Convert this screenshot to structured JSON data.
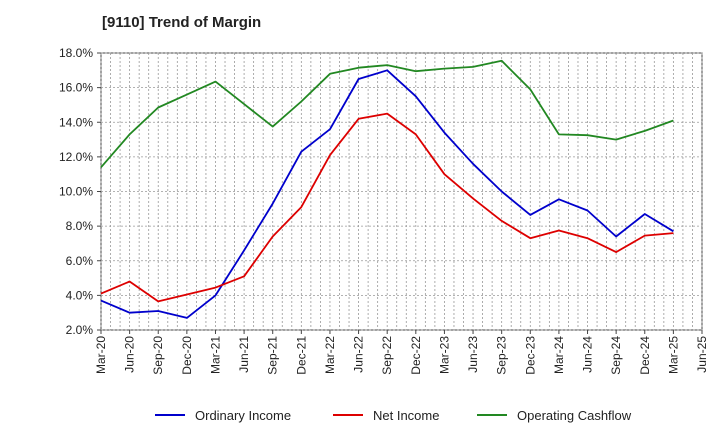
{
  "chart_data": {
    "type": "line",
    "title": "[9110]  Trend of Margin",
    "xlabel": "",
    "ylabel": "",
    "ylim": [
      2.0,
      18.0
    ],
    "y_ticks": [
      "2.0%",
      "4.0%",
      "6.0%",
      "8.0%",
      "10.0%",
      "12.0%",
      "14.0%",
      "16.0%",
      "18.0%"
    ],
    "y_tick_values": [
      2,
      4,
      6,
      8,
      10,
      12,
      14,
      16,
      18
    ],
    "x_tick_labels": [
      "Mar-20",
      "Jun-20",
      "Sep-20",
      "Dec-20",
      "Mar-21",
      "Jun-21",
      "Sep-21",
      "Dec-21",
      "Mar-22",
      "Jun-22",
      "Sep-22",
      "Dec-22",
      "Mar-23",
      "Jun-23",
      "Sep-23",
      "Dec-23",
      "Mar-24",
      "Jun-24",
      "Sep-24",
      "Dec-24",
      "Mar-25",
      "Jun-25"
    ],
    "categories": [
      "Mar-20",
      "Jun-20",
      "Sep-20",
      "Dec-20",
      "Mar-21",
      "Jun-21",
      "Sep-21",
      "Dec-21",
      "Mar-22",
      "Jun-22",
      "Sep-22",
      "Dec-22",
      "Mar-23",
      "Jun-23",
      "Sep-23",
      "Dec-23",
      "Mar-24",
      "Jun-24",
      "Sep-24",
      "Dec-24",
      "Mar-25"
    ],
    "grid": true,
    "legend_position": "bottom",
    "series": [
      {
        "name": "Ordinary Income",
        "color": "#0000cc",
        "values": [
          3.7,
          3.0,
          3.1,
          2.7,
          4.0,
          6.6,
          9.3,
          12.3,
          13.6,
          16.5,
          17.0,
          15.5,
          13.4,
          11.6,
          10.0,
          8.65,
          9.55,
          8.9,
          7.4,
          8.7,
          7.7
        ]
      },
      {
        "name": "Net Income",
        "color": "#dd0000",
        "values": [
          4.1,
          4.8,
          3.65,
          4.05,
          4.45,
          5.1,
          7.4,
          9.1,
          12.1,
          14.2,
          14.5,
          13.3,
          11.0,
          9.6,
          8.3,
          7.3,
          7.75,
          7.3,
          6.5,
          7.45,
          7.6
        ]
      },
      {
        "name": "Operating Cashflow",
        "color": "#228822",
        "values": [
          11.4,
          13.3,
          14.85,
          15.6,
          16.35,
          15.05,
          13.75,
          15.2,
          16.8,
          17.15,
          17.3,
          16.95,
          17.1,
          17.2,
          17.55,
          15.9,
          13.3,
          13.25,
          13.0,
          13.5,
          14.1
        ]
      }
    ]
  }
}
